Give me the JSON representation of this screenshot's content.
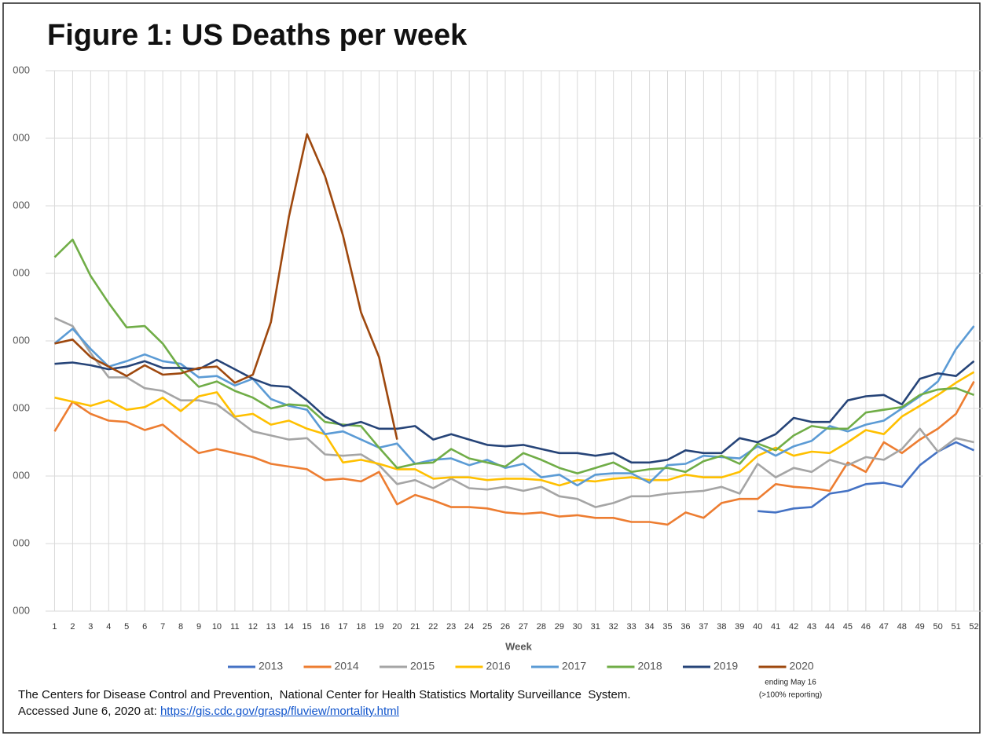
{
  "chart_data": {
    "type": "line",
    "title": "Figure 1: US Deaths per week",
    "x_label": "Week",
    "categories": [
      "1",
      "2",
      "3",
      "4",
      "5",
      "6",
      "7",
      "8",
      "9",
      "10",
      "11",
      "12",
      "13",
      "14",
      "15",
      "16",
      "17",
      "18",
      "19",
      "20",
      "21",
      "22",
      "23",
      "24",
      "25",
      "26",
      "27",
      "28",
      "29",
      "30",
      "31",
      "32",
      "33",
      "34",
      "35",
      "36",
      "37",
      "38",
      "39",
      "40",
      "41",
      "42",
      "43",
      "44",
      "45",
      "46",
      "47",
      "48",
      "49",
      "50",
      "51",
      "52"
    ],
    "ylim": [
      40000,
      80000
    ],
    "yticks": [
      {
        "value": 40000,
        "label": "000"
      },
      {
        "value": 45000,
        "label": "000"
      },
      {
        "value": 50000,
        "label": "000"
      },
      {
        "value": 55000,
        "label": "000"
      },
      {
        "value": 60000,
        "label": "000"
      },
      {
        "value": 65000,
        "label": "000"
      },
      {
        "value": 70000,
        "label": "000"
      },
      {
        "value": 75000,
        "label": "000"
      },
      {
        "value": 80000,
        "label": "000"
      }
    ],
    "grid": true,
    "legend": "bottom",
    "series": [
      {
        "name": "2013",
        "color": "#4472c4",
        "values": [
          null,
          null,
          null,
          null,
          null,
          null,
          null,
          null,
          null,
          null,
          null,
          null,
          null,
          null,
          null,
          null,
          null,
          null,
          null,
          null,
          null,
          null,
          null,
          null,
          null,
          null,
          null,
          null,
          null,
          null,
          null,
          null,
          null,
          null,
          null,
          null,
          null,
          null,
          null,
          47400,
          47300,
          47600,
          47700,
          48700,
          48900,
          49400,
          49500,
          49200,
          50800,
          51800,
          52500,
          51900
        ]
      },
      {
        "name": "2014",
        "color": "#ed7d31",
        "values": [
          53300,
          55500,
          54600,
          54100,
          54000,
          53400,
          53800,
          52700,
          51700,
          52000,
          51700,
          51400,
          50900,
          50700,
          50500,
          49700,
          49800,
          49600,
          50300,
          47900,
          48600,
          48200,
          47700,
          47700,
          47600,
          47300,
          47200,
          47300,
          47000,
          47100,
          46900,
          46900,
          46600,
          46600,
          46400,
          47300,
          46900,
          48000,
          48300,
          48300,
          49400,
          49200,
          49100,
          48900,
          51000,
          50300,
          52500,
          51700,
          52700,
          53500,
          54600,
          57000
        ]
      },
      {
        "name": "2015",
        "color": "#a5a5a5",
        "values": [
          61700,
          61100,
          59100,
          57300,
          57300,
          56500,
          56300,
          55600,
          55600,
          55300,
          54300,
          53300,
          53000,
          52700,
          52800,
          51600,
          51500,
          51600,
          50800,
          49400,
          49700,
          49100,
          49800,
          49100,
          49000,
          49200,
          48900,
          49200,
          48500,
          48300,
          47700,
          48000,
          48500,
          48500,
          48700,
          48800,
          48900,
          49200,
          48700,
          50900,
          49900,
          50600,
          50300,
          51200,
          50800,
          51400,
          51200,
          52000,
          53500,
          51800,
          52800,
          52500
        ]
      },
      {
        "name": "2016",
        "color": "#ffc000",
        "values": [
          55800,
          55500,
          55200,
          55600,
          54900,
          55100,
          55800,
          54800,
          55900,
          56200,
          54400,
          54600,
          53800,
          54100,
          53500,
          53100,
          51000,
          51200,
          50900,
          50500,
          50500,
          49800,
          49900,
          49900,
          49700,
          49800,
          49800,
          49700,
          49300,
          49700,
          49600,
          49800,
          49900,
          49700,
          49700,
          50100,
          49900,
          49900,
          50300,
          51500,
          52100,
          51500,
          51800,
          51700,
          52500,
          53400,
          53100,
          54400,
          55200,
          56000,
          56900,
          57700
        ]
      },
      {
        "name": "2017",
        "color": "#5b9bd5",
        "values": [
          59800,
          60900,
          59400,
          58100,
          58500,
          59000,
          58500,
          58300,
          57300,
          57400,
          56700,
          57200,
          55700,
          55200,
          54900,
          53100,
          53300,
          52700,
          52100,
          52400,
          50900,
          51200,
          51300,
          50800,
          51200,
          50600,
          50900,
          49900,
          50100,
          49300,
          50100,
          50200,
          50200,
          49500,
          50800,
          50900,
          51500,
          51400,
          51300,
          52200,
          51500,
          52200,
          52600,
          53700,
          53300,
          53800,
          54100,
          55000,
          55900,
          57000,
          59400,
          61100
        ]
      },
      {
        "name": "2018",
        "color": "#70ad47",
        "values": [
          66200,
          67500,
          64800,
          62800,
          61000,
          61100,
          59800,
          57900,
          56600,
          57000,
          56300,
          55800,
          55000,
          55300,
          55200,
          54000,
          53800,
          53700,
          52100,
          50600,
          50900,
          51000,
          52000,
          51300,
          51000,
          50700,
          51700,
          51200,
          50600,
          50200,
          50600,
          51000,
          50300,
          50500,
          50600,
          50300,
          51100,
          51500,
          50900,
          52400,
          51900,
          53000,
          53700,
          53500,
          53500,
          54700,
          54900,
          55100,
          56000,
          56400,
          56500,
          56000
        ]
      },
      {
        "name": "2019",
        "color": "#264478",
        "values": [
          58300,
          58400,
          58200,
          57900,
          58100,
          58500,
          58000,
          58000,
          57900,
          58600,
          57900,
          57200,
          56700,
          56600,
          55600,
          54400,
          53700,
          54000,
          53500,
          53500,
          53700,
          52700,
          53100,
          52700,
          52300,
          52200,
          52300,
          52000,
          51700,
          51700,
          51500,
          51700,
          51000,
          51000,
          51200,
          51900,
          51700,
          51700,
          52800,
          52500,
          53100,
          54300,
          54000,
          54000,
          55600,
          55900,
          56000,
          55300,
          57200,
          57600,
          57400,
          58500
        ]
      },
      {
        "name": "2020",
        "color": "#9e480e",
        "values": [
          59800,
          60100,
          58800,
          58100,
          57400,
          58200,
          57500,
          57600,
          58000,
          58100,
          56900,
          57500,
          61400,
          69200,
          75300,
          72200,
          67800,
          62100,
          58800,
          52700,
          null,
          null,
          null,
          null,
          null,
          null,
          null,
          null,
          null,
          null,
          null,
          null,
          null,
          null,
          null,
          null,
          null,
          null,
          null,
          null,
          null,
          null,
          null,
          null,
          null,
          null,
          null,
          null,
          null,
          null,
          null,
          null
        ]
      }
    ],
    "legend_note": [
      "ending May 16",
      "(>100% reporting)"
    ],
    "source": {
      "text": "The Centers for Disease Control and Prevention,  National Center for Health Statistics Mortality Surveillance  System.",
      "accessed": "Accessed June 6, 2020 at:",
      "url": "https://gis.cdc.gov/grasp/fluview/mortality.html"
    }
  }
}
